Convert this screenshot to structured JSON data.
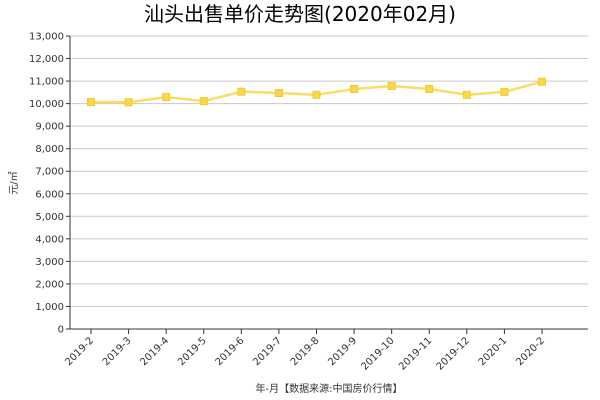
{
  "chart_data": {
    "type": "line",
    "title": "汕头出售单价走势图(2020年02月)",
    "xlabel": "年-月【数据来源:中国房价行情】",
    "ylabel": "元/㎡",
    "categories": [
      "2019-2",
      "2019-3",
      "2019-4",
      "2019-5",
      "2019-6",
      "2019-7",
      "2019-8",
      "2019-9",
      "2019-10",
      "2019-11",
      "2019-12",
      "2020-1",
      "2020-2"
    ],
    "series": [
      {
        "values": [
          10070,
          10060,
          10290,
          10110,
          10530,
          10470,
          10390,
          10650,
          10780,
          10650,
          10390,
          10520,
          10970
        ],
        "color": "#f7d84a"
      }
    ],
    "ylim": [
      0,
      13000
    ],
    "yticks": [
      0,
      1000,
      2000,
      3000,
      4000,
      5000,
      6000,
      7000,
      8000,
      9000,
      10000,
      11000,
      12000,
      13000
    ],
    "ytick_labels": [
      "0",
      "1,000",
      "2,000",
      "3,000",
      "4,000",
      "5,000",
      "6,000",
      "7,000",
      "8,000",
      "9,000",
      "10,000",
      "11,000",
      "12,000",
      "13,000"
    ],
    "grid": true,
    "legend": "none"
  }
}
